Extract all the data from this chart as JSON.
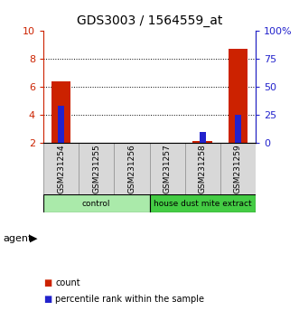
{
  "title": "GDS3003 / 1564559_at",
  "samples": [
    "GSM231254",
    "GSM231255",
    "GSM231256",
    "GSM231257",
    "GSM231258",
    "GSM231259"
  ],
  "count_values": [
    6.4,
    2.0,
    2.0,
    2.0,
    2.15,
    8.7
  ],
  "percentile_values": [
    33,
    0,
    0,
    0,
    10,
    25
  ],
  "ylim_left": [
    2,
    10
  ],
  "ylim_right": [
    0,
    100
  ],
  "yticks_left": [
    2,
    4,
    6,
    8,
    10
  ],
  "yticks_right": [
    0,
    25,
    50,
    75,
    100
  ],
  "ytick_labels_left": [
    "2",
    "4",
    "6",
    "8",
    "10"
  ],
  "ytick_labels_right": [
    "0",
    "25",
    "50",
    "75",
    "100%"
  ],
  "groups": [
    {
      "label": "control",
      "start": 0,
      "end": 3,
      "color": "#aaeaaa"
    },
    {
      "label": "house dust mite extract",
      "start": 3,
      "end": 6,
      "color": "#44cc44"
    }
  ],
  "agent_label": "agent",
  "count_color": "#cc2200",
  "percentile_color": "#2222cc",
  "count_bar_width": 0.55,
  "pct_bar_width": 0.18,
  "sample_box_color": "#c8c8c8",
  "sample_box_face": "#d8d8d8",
  "background_color": "#ffffff",
  "legend_count_label": "count",
  "legend_percentile_label": "percentile rank within the sample"
}
